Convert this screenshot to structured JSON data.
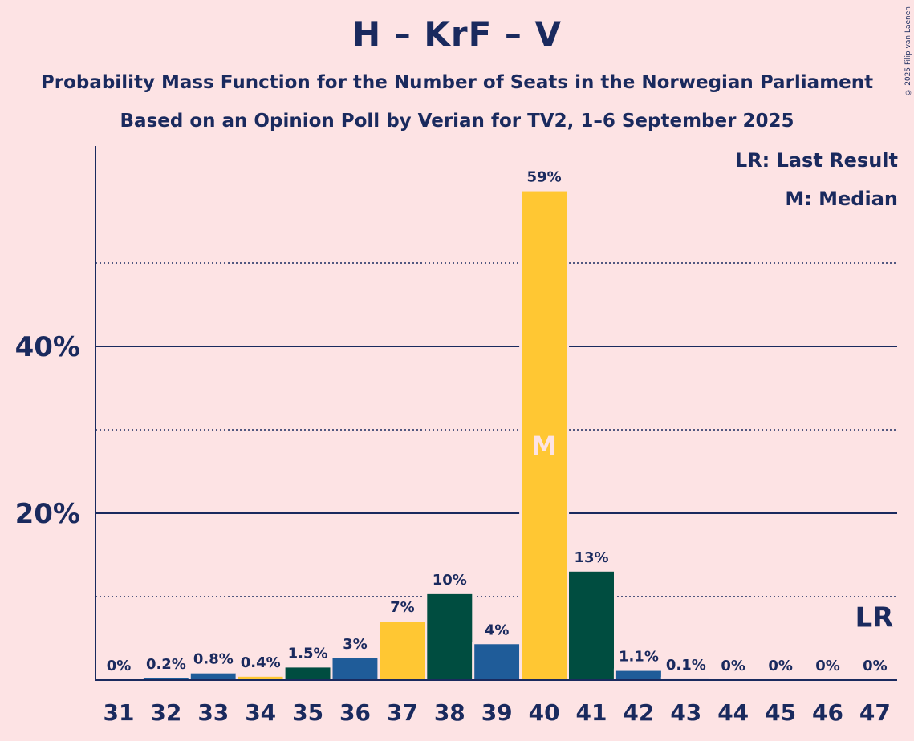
{
  "header": {
    "title": "H – KrF – V",
    "subtitle1": "Probability Mass Function for the Number of Seats in the Norwegian Parliament",
    "subtitle2": "Based on an Opinion Poll by Verian for TV2, 1–6 September 2025",
    "copyright": "© 2025 Filip van Laenen"
  },
  "legend": {
    "last_result": "LR: Last Result",
    "median": "M: Median"
  },
  "chart_data": {
    "type": "bar",
    "categories": [
      "31",
      "32",
      "33",
      "34",
      "35",
      "36",
      "37",
      "38",
      "39",
      "40",
      "41",
      "42",
      "43",
      "44",
      "45",
      "46",
      "47"
    ],
    "values": [
      0,
      0.2,
      0.8,
      0.4,
      1.5,
      2.6,
      7,
      10.3,
      4.3,
      58.6,
      13,
      1.1,
      0.1,
      0,
      0,
      0,
      0
    ],
    "labels": [
      "0%",
      "0.2%",
      "0.8%",
      "0.4%",
      "1.5%",
      "3%",
      "7%",
      "10%",
      "4%",
      "59%",
      "13%",
      "1.1%",
      "0.1%",
      "0%",
      "0%",
      "0%",
      "0%"
    ],
    "bar_colors": [
      "#1f5c99",
      "#1f5c99",
      "#1f5c99",
      "#ffc733",
      "#004d40",
      "#1f5c99",
      "#ffc733",
      "#004d40",
      "#1f5c99",
      "#ffc733",
      "#004d40",
      "#1f5c99",
      "#1f5c99",
      "#1f5c99",
      "#1f5c99",
      "#1f5c99",
      "#1f5c99"
    ],
    "ylim": [
      0,
      64
    ],
    "yticks": [
      {
        "value": 20,
        "label": "20%"
      },
      {
        "value": 40,
        "label": "40%"
      }
    ],
    "dotted_gridlines": [
      10,
      30,
      50
    ],
    "median_category": "40",
    "median_marker": "M",
    "last_result_category": "47",
    "last_result_marker": "LR",
    "grid": true,
    "legend_position": "top-right"
  },
  "colors": {
    "background": "#fde3e4",
    "text": "#1a2a5e",
    "blue": "#1f5c99",
    "yellow": "#ffc733",
    "green": "#004d40"
  }
}
